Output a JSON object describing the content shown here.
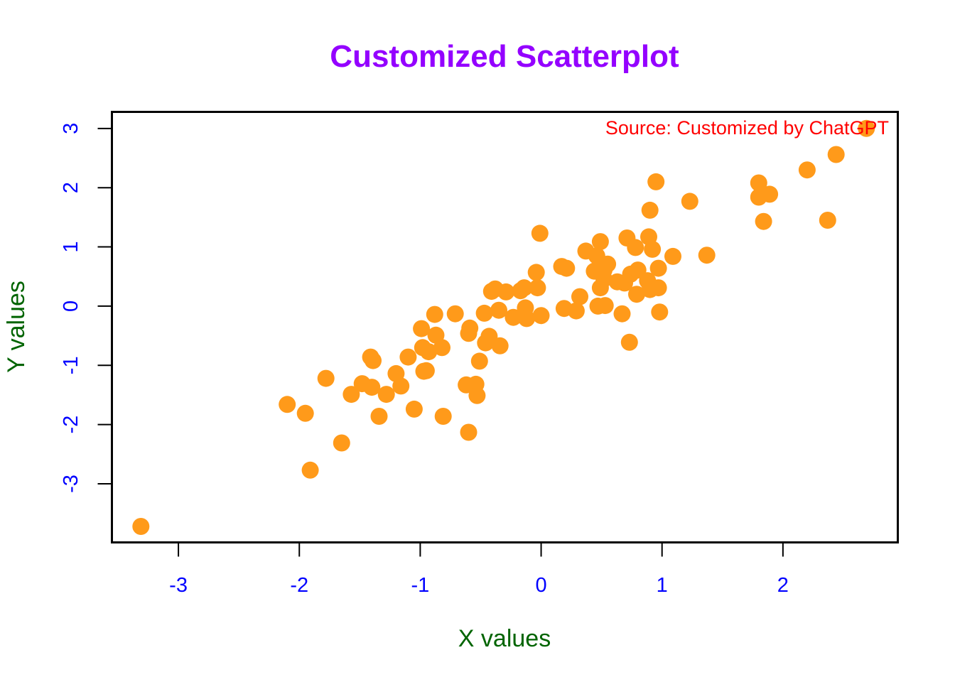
{
  "chart_data": {
    "type": "scatter",
    "title": "Customized Scatterplot",
    "xlabel": "X values",
    "ylabel": "Y values",
    "annotation": "Source: Customized by ChatGPT",
    "xlim": [
      -3.55,
      2.95
    ],
    "ylim": [
      -3.99,
      3.28
    ],
    "x_ticks": [
      -3,
      -2,
      -1,
      0,
      1,
      2
    ],
    "x_tick_labels": [
      "-3",
      "-2",
      "-1",
      "0",
      "1",
      "2"
    ],
    "y_ticks": [
      -3,
      -2,
      -1,
      0,
      1,
      2,
      3
    ],
    "y_tick_labels": [
      "-3",
      "-2",
      "-1",
      "0",
      "1",
      "2",
      "3"
    ],
    "grid": false,
    "colors": {
      "title": "#9400ff",
      "axis_label": "#006400",
      "tick_label": "#0000ff",
      "point": "#ff9a1a",
      "annotation": "#ff0000",
      "frame": "#000000"
    },
    "series": [
      {
        "points": [
          [
            -3.31,
            -3.72
          ],
          [
            -2.1,
            -1.66
          ],
          [
            -1.95,
            -1.81
          ],
          [
            -1.91,
            -2.77
          ],
          [
            -1.78,
            -1.22
          ],
          [
            -1.65,
            -2.31
          ],
          [
            -1.57,
            -1.49
          ],
          [
            -1.48,
            -1.31
          ],
          [
            -1.41,
            -0.86
          ],
          [
            -1.39,
            -0.92
          ],
          [
            -1.4,
            -1.37
          ],
          [
            -1.34,
            -1.86
          ],
          [
            -1.28,
            -1.49
          ],
          [
            -1.2,
            -1.14
          ],
          [
            -1.16,
            -1.35
          ],
          [
            -1.1,
            -0.86
          ],
          [
            -1.05,
            -1.74
          ],
          [
            -0.99,
            -0.38
          ],
          [
            -0.98,
            -0.7
          ],
          [
            -0.97,
            -1.1
          ],
          [
            -0.95,
            -1.09
          ],
          [
            -0.93,
            -0.77
          ],
          [
            -0.88,
            -0.14
          ],
          [
            -0.87,
            -0.49
          ],
          [
            -0.82,
            -0.7
          ],
          [
            -0.81,
            -1.86
          ],
          [
            -0.71,
            -0.13
          ],
          [
            -0.62,
            -1.33
          ],
          [
            -0.6,
            -0.46
          ],
          [
            -0.6,
            -2.13
          ],
          [
            -0.59,
            -0.37
          ],
          [
            -0.54,
            -1.32
          ],
          [
            -0.53,
            -1.51
          ],
          [
            -0.51,
            -0.93
          ],
          [
            -0.47,
            -0.12
          ],
          [
            -0.46,
            -0.62
          ],
          [
            -0.43,
            -0.51
          ],
          [
            -0.41,
            0.25
          ],
          [
            -0.38,
            0.29
          ],
          [
            -0.35,
            -0.07
          ],
          [
            -0.34,
            -0.67
          ],
          [
            -0.29,
            0.24
          ],
          [
            -0.23,
            -0.19
          ],
          [
            -0.17,
            0.26
          ],
          [
            -0.14,
            0.31
          ],
          [
            -0.13,
            -0.03
          ],
          [
            -0.12,
            -0.21
          ],
          [
            -0.04,
            0.57
          ],
          [
            -0.03,
            0.31
          ],
          [
            -0.01,
            1.23
          ],
          [
            0.0,
            -0.16
          ],
          [
            0.17,
            0.67
          ],
          [
            0.21,
            0.64
          ],
          [
            0.19,
            -0.04
          ],
          [
            0.29,
            -0.08
          ],
          [
            0.32,
            0.16
          ],
          [
            0.37,
            0.93
          ],
          [
            0.44,
            0.59
          ],
          [
            0.46,
            0.85
          ],
          [
            0.47,
            0.63
          ],
          [
            0.47,
            0.0
          ],
          [
            0.49,
            0.31
          ],
          [
            0.49,
            1.09
          ],
          [
            0.52,
            0.46
          ],
          [
            0.52,
            0.61
          ],
          [
            0.53,
            0.01
          ],
          [
            0.55,
            0.71
          ],
          [
            0.63,
            0.41
          ],
          [
            0.67,
            -0.13
          ],
          [
            0.69,
            0.39
          ],
          [
            0.71,
            1.15
          ],
          [
            0.73,
            -0.61
          ],
          [
            0.74,
            0.54
          ],
          [
            0.78,
            0.99
          ],
          [
            0.79,
            0.2
          ],
          [
            0.8,
            0.61
          ],
          [
            0.88,
            0.43
          ],
          [
            0.89,
            1.17
          ],
          [
            0.9,
            0.28
          ],
          [
            0.9,
            1.62
          ],
          [
            0.92,
            0.96
          ],
          [
            0.95,
            2.1
          ],
          [
            0.97,
            0.31
          ],
          [
            0.97,
            0.64
          ],
          [
            0.98,
            -0.1
          ],
          [
            1.09,
            0.84
          ],
          [
            1.23,
            1.77
          ],
          [
            1.37,
            0.86
          ],
          [
            1.8,
            2.08
          ],
          [
            1.8,
            1.84
          ],
          [
            1.84,
            1.43
          ],
          [
            1.89,
            1.89
          ],
          [
            2.2,
            2.3
          ],
          [
            2.37,
            1.45
          ],
          [
            2.44,
            2.56
          ],
          [
            2.69,
            3.0
          ]
        ]
      }
    ]
  }
}
